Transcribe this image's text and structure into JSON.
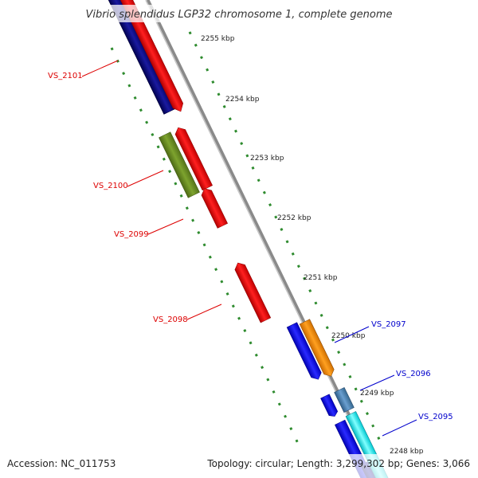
{
  "title": "Vibrio splendidus LGP32 chromosome 1, complete genome",
  "footer": {
    "accession": "Accession: NC_011753",
    "summary": "Topology: circular; Length: 3,299,302 bp; Genes: 3,066"
  },
  "colors": {
    "backbone": "#888888",
    "tick": "#2e8b2e",
    "label_left": "#dd0000",
    "label_right": "#0000cc",
    "gene_red": "#ff0000",
    "gene_navy": "#000080",
    "gene_olive": "#6b8e23",
    "gene_blue": "#0000ee",
    "gene_orange": "#ff8c00",
    "gene_steel": "#4682b4",
    "gene_cyan": "#00e5ee"
  },
  "kbp_ticks": [
    "2255 kbp",
    "2254 kbp",
    "2253 kbp",
    "2252 kbp",
    "2251 kbp",
    "2250 kbp",
    "2249 kbp",
    "2248 kbp"
  ],
  "gene_labels": {
    "left": [
      "VS_2101",
      "VS_2100",
      "VS_2099",
      "VS_2098"
    ],
    "right": [
      "VS_2097",
      "VS_2096",
      "VS_2095"
    ]
  }
}
